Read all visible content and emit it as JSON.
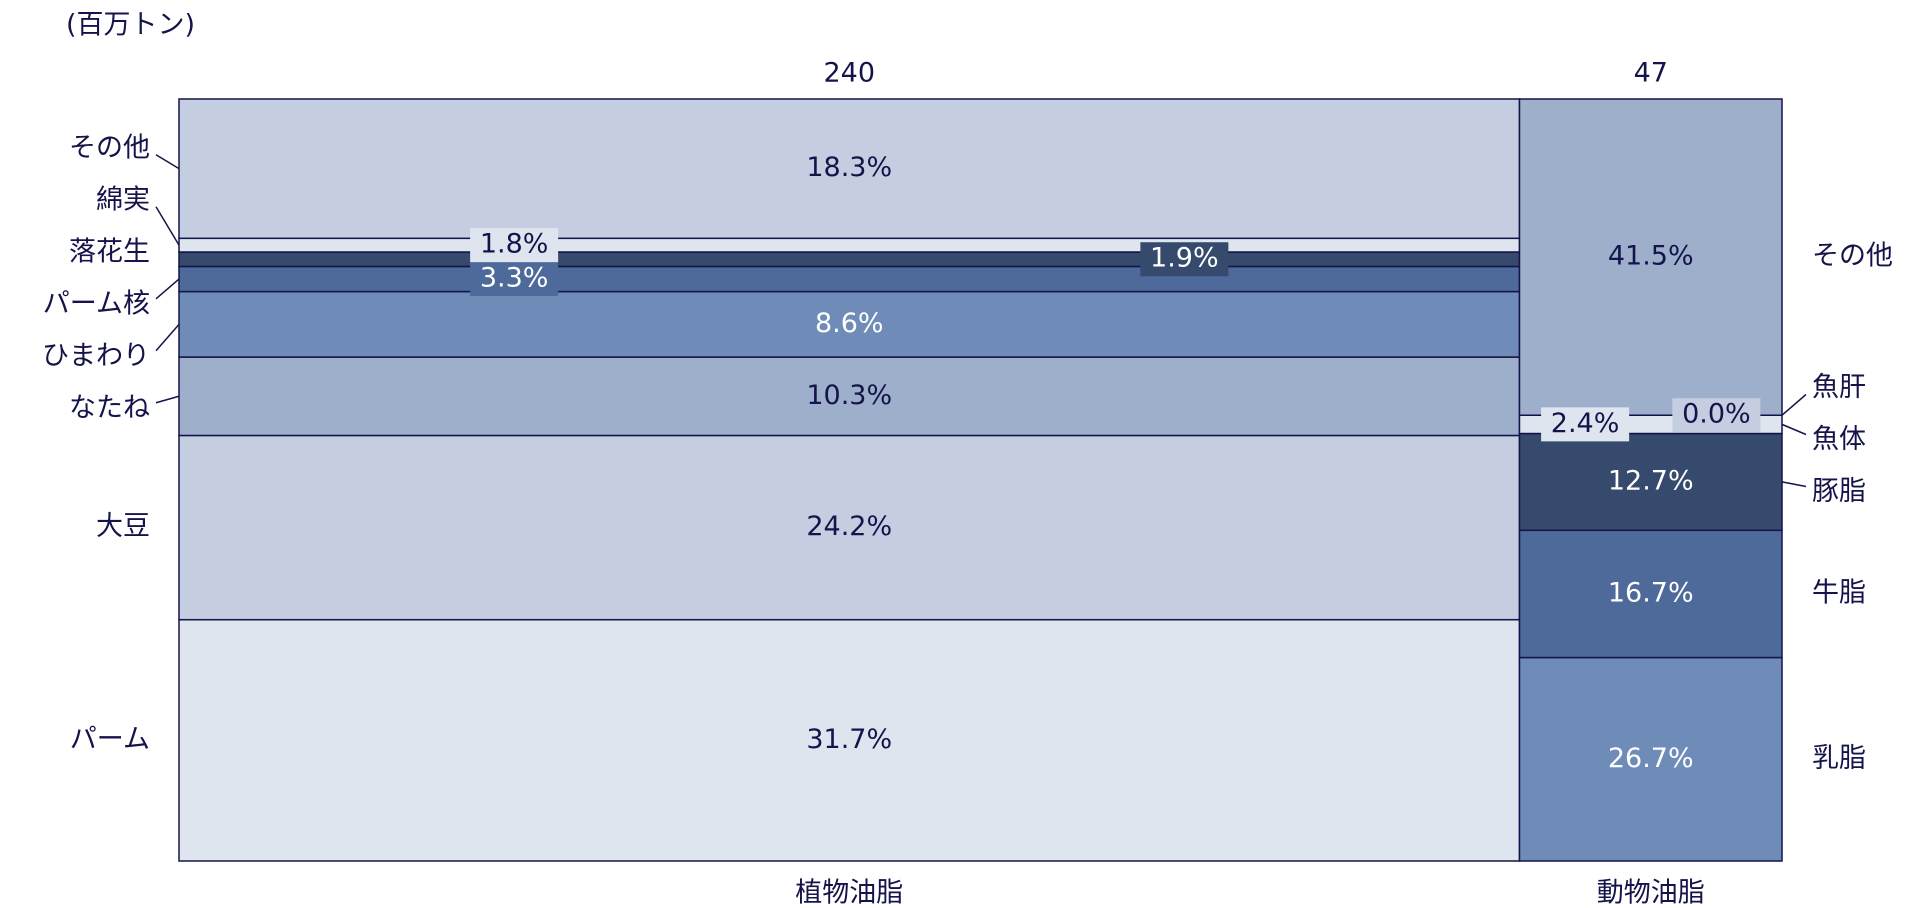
{
  "chart_data": {
    "type": "mekko",
    "unit_label": "(百万トン)",
    "categories": [
      "植物油脂",
      "動物油脂"
    ],
    "totals": [
      240,
      47
    ],
    "columns": [
      {
        "names": [
          "パーム",
          "大豆",
          "なたね",
          "ひまわり",
          "パーム核",
          "落花生",
          "綿実",
          "その他"
        ],
        "values": [
          31.7,
          24.2,
          10.3,
          8.6,
          3.3,
          1.9,
          1.8,
          18.3
        ],
        "value_labels": [
          "31.7%",
          "24.2%",
          "10.3%",
          "8.6%",
          "3.3%",
          "1.9%",
          "1.8%",
          "18.3%"
        ],
        "colors": [
          "#dfe5ef",
          "#c4cee0",
          "#9eafcc",
          "#6f8cb8",
          "#4d6a9a",
          "#354a6c",
          "#dfe5ef",
          "#c4cee0"
        ]
      },
      {
        "names": [
          "乳脂",
          "牛脂",
          "豚脂",
          "魚体",
          "魚肝",
          "その他"
        ],
        "values": [
          26.7,
          16.7,
          12.7,
          2.4,
          0.0,
          41.5
        ],
        "value_labels": [
          "26.7%",
          "16.7%",
          "12.7%",
          "2.4%",
          "0.0%",
          "41.5%"
        ],
        "colors": [
          "#6f8cb8",
          "#4d6a9a",
          "#354a6c",
          "#dfe5ef",
          "#c4cee0",
          "#9eafcc"
        ]
      }
    ]
  }
}
